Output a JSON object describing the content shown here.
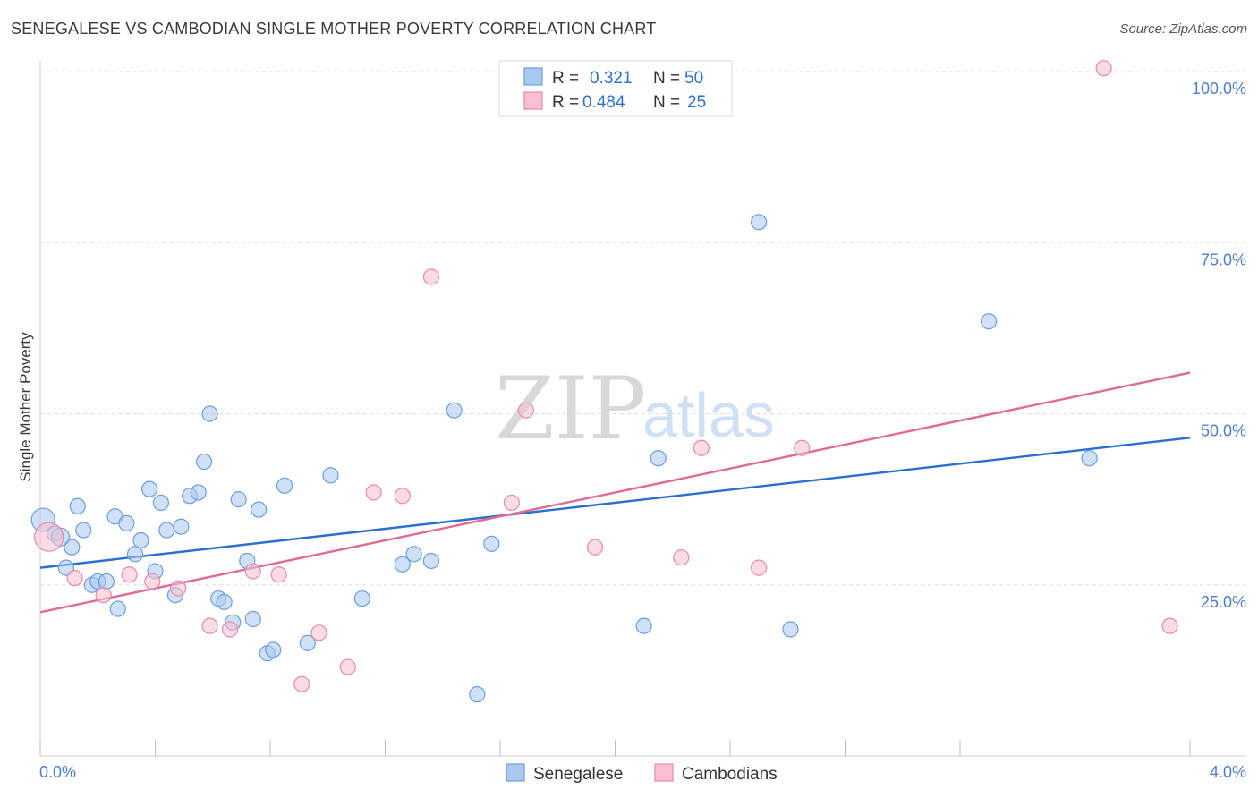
{
  "title": "SENEGALESE VS CAMBODIAN SINGLE MOTHER POVERTY CORRELATION CHART",
  "source": "Source: ZipAtlas.com",
  "watermark": {
    "zip": "ZIP",
    "atlas": "atlas"
  },
  "legend": {
    "r_label": "R =",
    "n_label": "N =",
    "entries": [
      {
        "r": "0.321",
        "n": "50"
      },
      {
        "r": "0.484",
        "n": "25"
      }
    ]
  },
  "bottom_legend": [
    "Senegalese",
    "Cambodians"
  ],
  "colors": {
    "senegalese_fill": "#aac8f0",
    "senegalese_stroke": "#6a9ee0",
    "senegalese_line": "#2a6fd0",
    "cambodian_fill": "#f7bfd0",
    "cambodian_stroke": "#e88aa8",
    "cambodian_line": "#e06a93",
    "tick": "#4a7fd0",
    "grid": "#dddddd"
  },
  "chart_data": {
    "type": "scatter",
    "title": "SENEGALESE VS CAMBODIAN SINGLE MOTHER POVERTY CORRELATION CHART",
    "xlabel": "",
    "ylabel": "Single Mother Poverty",
    "xlim": [
      0.0,
      4.0
    ],
    "ylim": [
      0,
      100
    ],
    "x_tick_labels": [
      "0.0%",
      "4.0%"
    ],
    "y_ticks": [
      25,
      50,
      75,
      100
    ],
    "y_tick_labels": [
      "25.0%",
      "50.0%",
      "75.0%",
      "100.0%"
    ],
    "grid": true,
    "legend_position": "top-center",
    "series": [
      {
        "name": "Senegalese",
        "r": 0.321,
        "n": 50,
        "trend": [
          [
            0.0,
            27.5
          ],
          [
            4.0,
            46.5
          ]
        ],
        "points": [
          [
            0.01,
            34.5
          ],
          [
            0.05,
            32.5
          ],
          [
            0.09,
            27.5
          ],
          [
            0.11,
            30.5
          ],
          [
            0.13,
            36.5
          ],
          [
            0.15,
            33.0
          ],
          [
            0.18,
            25.0
          ],
          [
            0.2,
            25.5
          ],
          [
            0.23,
            25.5
          ],
          [
            0.26,
            35.0
          ],
          [
            0.27,
            21.5
          ],
          [
            0.3,
            34.0
          ],
          [
            0.33,
            29.5
          ],
          [
            0.35,
            31.5
          ],
          [
            0.38,
            39.0
          ],
          [
            0.4,
            27.0
          ],
          [
            0.42,
            37.0
          ],
          [
            0.44,
            33.0
          ],
          [
            0.47,
            23.5
          ],
          [
            0.49,
            33.5
          ],
          [
            0.52,
            38.0
          ],
          [
            0.55,
            38.5
          ],
          [
            0.57,
            43.0
          ],
          [
            0.59,
            50.0
          ],
          [
            0.62,
            23.0
          ],
          [
            0.64,
            22.5
          ],
          [
            0.67,
            19.5
          ],
          [
            0.69,
            37.5
          ],
          [
            0.72,
            28.5
          ],
          [
            0.74,
            20.0
          ],
          [
            0.76,
            36.0
          ],
          [
            0.79,
            15.0
          ],
          [
            0.81,
            15.5
          ],
          [
            0.85,
            39.5
          ],
          [
            0.93,
            16.5
          ],
          [
            1.01,
            41.0
          ],
          [
            1.12,
            23.0
          ],
          [
            1.26,
            28.0
          ],
          [
            1.3,
            29.5
          ],
          [
            1.36,
            28.5
          ],
          [
            1.44,
            50.5
          ],
          [
            1.52,
            9.0
          ],
          [
            1.57,
            31.0
          ],
          [
            2.1,
            19.0
          ],
          [
            2.15,
            43.5
          ],
          [
            2.5,
            78.0
          ],
          [
            2.61,
            18.5
          ],
          [
            3.3,
            63.5
          ],
          [
            3.65,
            43.5
          ],
          [
            0.07,
            32.0
          ]
        ]
      },
      {
        "name": "Cambodians",
        "r": 0.484,
        "n": 25,
        "trend": [
          [
            0.0,
            21.0
          ],
          [
            4.0,
            56.0
          ]
        ],
        "points": [
          [
            0.03,
            32.0
          ],
          [
            0.12,
            26.0
          ],
          [
            0.22,
            23.5
          ],
          [
            0.31,
            26.5
          ],
          [
            0.39,
            25.5
          ],
          [
            0.48,
            24.5
          ],
          [
            0.59,
            19.0
          ],
          [
            0.66,
            18.5
          ],
          [
            0.74,
            27.0
          ],
          [
            0.83,
            26.5
          ],
          [
            0.91,
            10.5
          ],
          [
            0.97,
            18.0
          ],
          [
            1.07,
            13.0
          ],
          [
            1.16,
            38.5
          ],
          [
            1.26,
            38.0
          ],
          [
            1.36,
            70.0
          ],
          [
            1.69,
            50.5
          ],
          [
            1.64,
            37.0
          ],
          [
            1.93,
            30.5
          ],
          [
            2.23,
            29.0
          ],
          [
            2.3,
            45.0
          ],
          [
            2.5,
            27.5
          ],
          [
            2.65,
            45.0
          ],
          [
            3.7,
            100.5
          ],
          [
            3.93,
            19.0
          ]
        ]
      }
    ]
  }
}
